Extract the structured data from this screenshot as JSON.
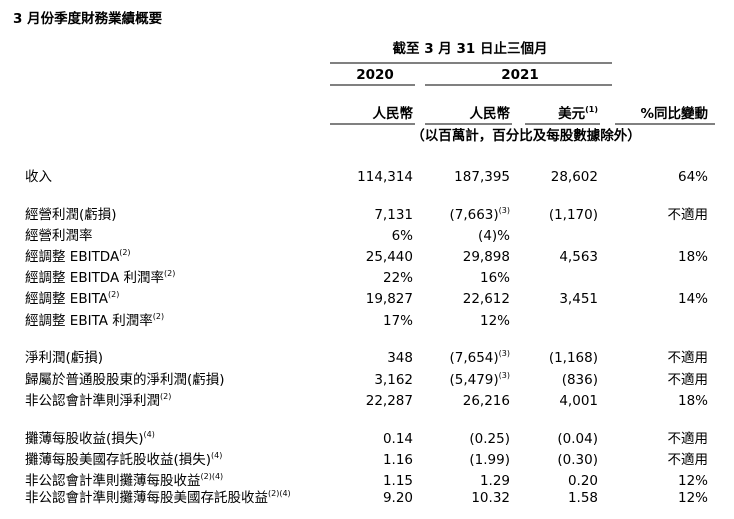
{
  "header": {
    "title": "3 月份季度財務業績概要",
    "period": "截至 3 月 31 日止三個月",
    "years": [
      "2020",
      "2021"
    ],
    "columns": [
      {
        "text": "人民幣"
      },
      {
        "text": "人民幣"
      },
      {
        "text": "美元",
        "note": "(1)"
      },
      {
        "text": "%同比變動"
      }
    ],
    "unit_note": "（以百萬計，百分比及每股數據除外）"
  },
  "table": {
    "groups": [
      [
        {
          "label": "收入",
          "cells": [
            "114,314",
            "187,395",
            "28,602",
            "64%"
          ]
        }
      ],
      [
        {
          "label": "經營利潤(虧損)",
          "cells": [
            "7,131",
            {
              "text": "(7,663)",
              "note": "(3)"
            },
            "(1,170)",
            "不適用"
          ]
        },
        {
          "label": "經營利潤率",
          "cells": [
            "6%",
            "(4)%",
            null,
            null
          ]
        },
        {
          "label": "經調整 EBITDA",
          "note": "(2)",
          "cells": [
            "25,440",
            "29,898",
            "4,563",
            "18%"
          ]
        },
        {
          "label": "經調整 EBITDA 利潤率",
          "note": "(2)",
          "cells": [
            "22%",
            "16%",
            null,
            null
          ]
        },
        {
          "label": "經調整 EBITA",
          "note": "(2)",
          "cells": [
            "19,827",
            "22,612",
            "3,451",
            "14%"
          ]
        },
        {
          "label": "經調整 EBITA 利潤率",
          "note": "(2)",
          "cells": [
            "17%",
            "12%",
            null,
            null
          ]
        }
      ],
      [
        {
          "label": "淨利潤(虧損)",
          "cells": [
            "348",
            {
              "text": "(7,654)",
              "note": "(3)"
            },
            "(1,168)",
            "不適用"
          ]
        },
        {
          "label": "歸屬於普通股股東的淨利潤(虧損)",
          "cells": [
            "3,162",
            {
              "text": "(5,479)",
              "note": "(3)"
            },
            "(836)",
            "不適用"
          ]
        },
        {
          "label": "非公認會計準則淨利潤",
          "note": "(2)",
          "cells": [
            "22,287",
            "26,216",
            "4,001",
            "18%"
          ]
        }
      ],
      [
        {
          "label": "攤薄每股收益(損失)",
          "note": "(4)",
          "cells": [
            "0.14",
            "(0.25)",
            "(0.04)",
            "不適用"
          ]
        },
        {
          "label": "攤薄每股美國存託股收益(損失)",
          "note": "(4)",
          "cells": [
            "1.16",
            "(1.99)",
            "(0.30)",
            "不適用"
          ]
        },
        {
          "label": "非公認會計準則攤薄每股收益",
          "note": "(2)(4)",
          "cells": [
            "1.15",
            "1.29",
            "0.20",
            "12%"
          ]
        },
        {
          "label": "非公認會計準則攤薄每股美國存託股收益",
          "note": "(2)(4)",
          "cells": [
            "9.20",
            "10.32",
            "1.58",
            "12%"
          ]
        }
      ]
    ]
  }
}
